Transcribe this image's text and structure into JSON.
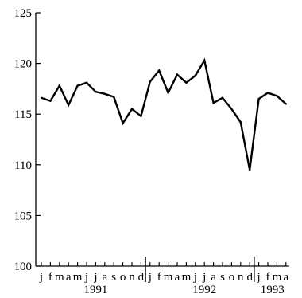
{
  "chart_data": {
    "type": "line",
    "title": "",
    "xlabel": "",
    "ylabel": "",
    "ylim": [
      100,
      125
    ],
    "yticks": [
      "100",
      "105",
      "110",
      "115",
      "120",
      "125"
    ],
    "month_labels": [
      "j",
      "f",
      "m",
      "a",
      "m",
      "j",
      "j",
      "a",
      "s",
      "o",
      "n",
      "d",
      "j",
      "f",
      "m",
      "a",
      "m",
      "j",
      "j",
      "a",
      "s",
      "o",
      "n",
      "d",
      "j",
      "f",
      "m",
      "a"
    ],
    "x": [
      "1991-01",
      "1991-02",
      "1991-03",
      "1991-04",
      "1991-05",
      "1991-06",
      "1991-07",
      "1991-08",
      "1991-09",
      "1991-10",
      "1991-11",
      "1991-12",
      "1992-01",
      "1992-02",
      "1992-03",
      "1992-04",
      "1992-05",
      "1992-06",
      "1992-07",
      "1992-08",
      "1992-09",
      "1992-10",
      "1992-11",
      "1992-12",
      "1993-01",
      "1993-02",
      "1993-03",
      "1993-04"
    ],
    "values": [
      116.6,
      116.3,
      117.8,
      115.9,
      117.8,
      118.1,
      117.2,
      117.0,
      116.7,
      114.1,
      115.5,
      114.8,
      118.2,
      119.3,
      117.1,
      118.9,
      118.1,
      118.8,
      120.3,
      116.1,
      116.6,
      115.5,
      114.2,
      109.5,
      116.5,
      117.1,
      116.8,
      116.0
    ],
    "years": [
      {
        "label": "1991",
        "center_month_index": 6
      },
      {
        "label": "1992",
        "center_month_index": 18
      },
      {
        "label": "1993",
        "center_month_index": 25.5
      }
    ],
    "grid": false,
    "line_color": "#000000"
  }
}
